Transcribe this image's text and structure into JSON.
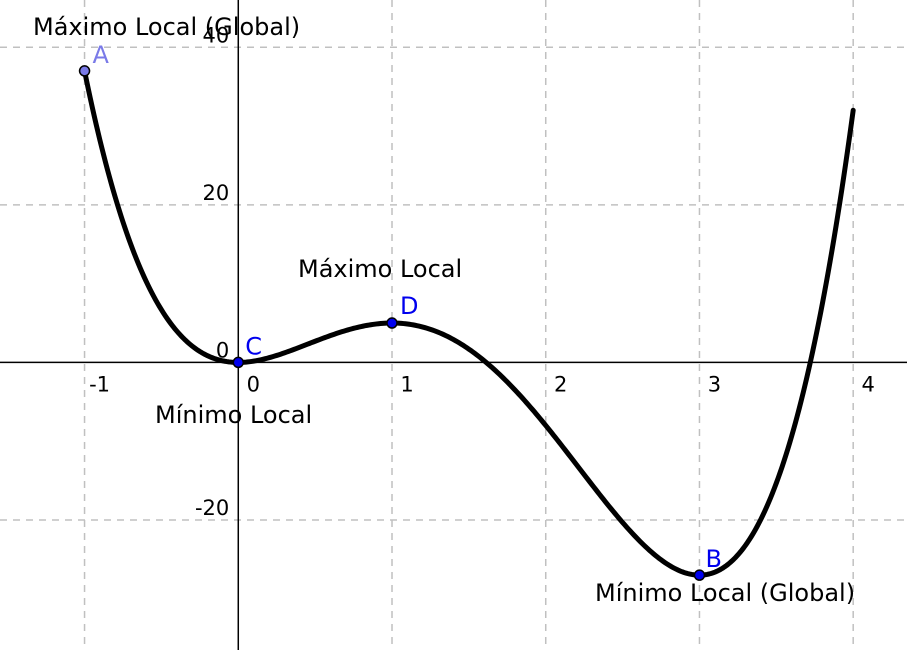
{
  "chart_data": {
    "type": "line",
    "title": "",
    "xlabel": "",
    "ylabel": "",
    "xlim": [
      -1.55,
      4.35
    ],
    "ylim": [
      -36.5,
      46
    ],
    "grid": true,
    "x_ticks": [
      {
        "value": -1,
        "label": "-1"
      },
      {
        "value": 0,
        "label": "0"
      },
      {
        "value": 1,
        "label": "1"
      },
      {
        "value": 2,
        "label": "2"
      },
      {
        "value": 3,
        "label": "3"
      },
      {
        "value": 4,
        "label": "4"
      }
    ],
    "y_ticks": [
      {
        "value": 40,
        "label": "40"
      },
      {
        "value": 20,
        "label": "20"
      },
      {
        "value": 0,
        "label": "0"
      },
      {
        "value": -20,
        "label": "-20"
      }
    ],
    "series": [
      {
        "function": "3x^4 - 16x^3 + 18x^2",
        "domain": [
          -1,
          4
        ],
        "color": "#000000"
      }
    ],
    "points": [
      {
        "label": "A",
        "x": -1,
        "y": 37,
        "color": "#7a7ae8"
      },
      {
        "label": "C",
        "x": 0,
        "y": 0,
        "color": "#0000ee"
      },
      {
        "label": "D",
        "x": 1,
        "y": 5,
        "color": "#0000ee"
      },
      {
        "label": "B",
        "x": 3,
        "y": -27,
        "color": "#0000ee"
      }
    ],
    "annotations": [
      {
        "text": "Máximo Local (Global)",
        "near": "A"
      },
      {
        "text": "Máximo Local",
        "near": "D"
      },
      {
        "text": "Mínimo Local",
        "near": "C"
      },
      {
        "text": "Mínimo Local (Global)",
        "near": "B"
      }
    ]
  }
}
